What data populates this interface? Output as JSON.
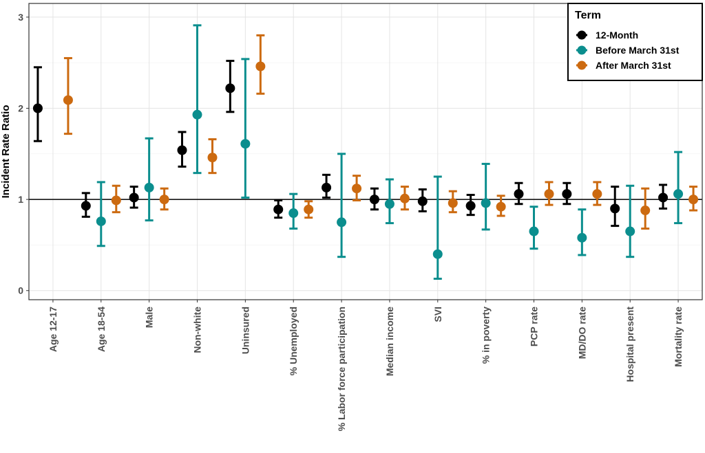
{
  "chart_data": {
    "type": "errorbar",
    "title": "",
    "xlabel": "",
    "ylabel": "Incident Rate Ratio",
    "ylim": [
      -0.1,
      3.15
    ],
    "yticks": [
      0,
      1,
      2,
      3
    ],
    "reference_line": 1,
    "grid": true,
    "legend": {
      "title": "Term",
      "position": "top-right"
    },
    "categories": [
      "Age 12-17",
      "Age 18-54",
      "Male",
      "Non-white",
      "Uninsured",
      "% Unemployed",
      "% Labor force participation",
      "Median income",
      "SVI",
      "% in poverty",
      "PCP rate",
      "MD/DO rate",
      "Hospital present",
      "Mortality rate"
    ],
    "series": [
      {
        "name": "12-Month",
        "color": "#000000",
        "values": [
          2.0,
          0.93,
          1.02,
          1.54,
          2.22,
          0.89,
          1.13,
          1.0,
          0.98,
          0.93,
          1.06,
          1.06,
          0.9,
          1.02
        ],
        "lower": [
          1.64,
          0.81,
          0.91,
          1.36,
          1.96,
          0.8,
          1.02,
          0.89,
          0.87,
          0.83,
          0.95,
          0.95,
          0.71,
          0.9
        ],
        "upper": [
          2.45,
          1.07,
          1.14,
          1.74,
          2.52,
          0.99,
          1.27,
          1.12,
          1.11,
          1.05,
          1.18,
          1.18,
          1.14,
          1.16
        ]
      },
      {
        "name": "Before March 31st",
        "color": "#0b8e8e",
        "values": [
          null,
          0.76,
          1.13,
          1.93,
          1.61,
          0.85,
          0.75,
          0.95,
          0.4,
          0.96,
          0.65,
          0.58,
          0.65,
          1.06
        ],
        "lower": [
          null,
          0.49,
          0.77,
          1.29,
          1.02,
          0.68,
          0.37,
          0.74,
          0.13,
          0.67,
          0.46,
          0.39,
          0.37,
          0.74
        ],
        "upper": [
          null,
          1.19,
          1.67,
          2.91,
          2.54,
          1.06,
          1.5,
          1.22,
          1.25,
          1.39,
          0.92,
          0.89,
          1.15,
          1.52
        ]
      },
      {
        "name": "After March 31st",
        "color": "#cc6a10",
        "values": [
          2.09,
          0.99,
          1.0,
          1.46,
          2.46,
          0.89,
          1.12,
          1.01,
          0.96,
          0.92,
          1.06,
          1.06,
          0.88,
          1.0
        ],
        "lower": [
          1.72,
          0.86,
          0.89,
          1.29,
          2.16,
          0.8,
          0.99,
          0.89,
          0.86,
          0.82,
          0.94,
          0.94,
          0.68,
          0.88
        ],
        "upper": [
          2.55,
          1.15,
          1.12,
          1.66,
          2.8,
          0.98,
          1.26,
          1.14,
          1.09,
          1.04,
          1.19,
          1.19,
          1.12,
          1.14
        ]
      }
    ]
  }
}
